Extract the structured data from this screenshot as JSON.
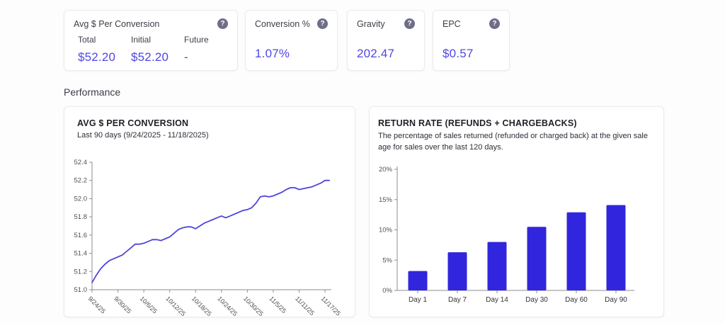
{
  "icons": {
    "help": "?"
  },
  "colors": {
    "accent_value": "#4f46e5",
    "line": "#4e44d8",
    "bar": "#3126dd",
    "help_bg": "#6f6e87",
    "axis": "#8d8d96",
    "tick_text": "#4f4f59"
  },
  "stats": {
    "cards": [
      {
        "title": "Avg $ Per Conversion",
        "columns": [
          {
            "label": "Total",
            "value": "$52.20"
          },
          {
            "label": "Initial",
            "value": "$52.20"
          },
          {
            "label": "Future",
            "value": "-"
          }
        ]
      },
      {
        "title": "Conversion %",
        "value": "1.07%"
      },
      {
        "title": "Gravity",
        "value": "202.47"
      },
      {
        "title": "EPC",
        "value": "$0.57"
      }
    ]
  },
  "section": {
    "performance_heading": "Performance"
  },
  "chart_data": [
    {
      "type": "line",
      "title": "AVG $ PER CONVERSION",
      "subtitle": "Last 90 days (9/24/2025 - 11/18/2025)",
      "x_tick_labels": [
        "9/24/25",
        "9/30/25",
        "10/6/25",
        "10/12/25",
        "10/18/25",
        "10/24/25",
        "10/30/25",
        "11/5/25",
        "11/11/25",
        "11/17/25"
      ],
      "x_tick_interval_days": 6,
      "values": [
        51.08,
        51.16,
        51.23,
        51.28,
        51.32,
        51.34,
        51.36,
        51.38,
        51.42,
        51.46,
        51.5,
        51.5,
        51.51,
        51.53,
        51.55,
        51.55,
        51.54,
        51.56,
        51.58,
        51.62,
        51.66,
        51.68,
        51.69,
        51.69,
        51.67,
        51.7,
        51.73,
        51.75,
        51.77,
        51.79,
        51.81,
        51.79,
        51.81,
        51.83,
        51.85,
        51.87,
        51.88,
        51.9,
        51.95,
        52.02,
        52.03,
        52.02,
        52.03,
        52.05,
        52.07,
        52.1,
        52.12,
        52.12,
        52.1,
        52.11,
        52.12,
        52.13,
        52.15,
        52.17,
        52.2,
        52.2
      ],
      "ylim": [
        51.0,
        52.4
      ],
      "ytick_step": 0.2,
      "grid": false,
      "legend": false,
      "line_color": "#4e44d8"
    },
    {
      "type": "bar",
      "title": "RETURN RATE (REFUNDS + CHARGEBACKS)",
      "description": "The percentage of sales returned (refunded or charged back) at the given sale age for sales over the last 120 days.",
      "categories": [
        "Day 1",
        "Day 7",
        "Day 14",
        "Day 30",
        "Day 60",
        "Day 90"
      ],
      "values": [
        3.2,
        6.3,
        8.0,
        10.5,
        12.9,
        14.1
      ],
      "ylim": [
        0,
        20
      ],
      "ytick_step": 5,
      "y_unit": "%",
      "grid": false,
      "legend": false,
      "bar_color": "#3126dd"
    }
  ]
}
